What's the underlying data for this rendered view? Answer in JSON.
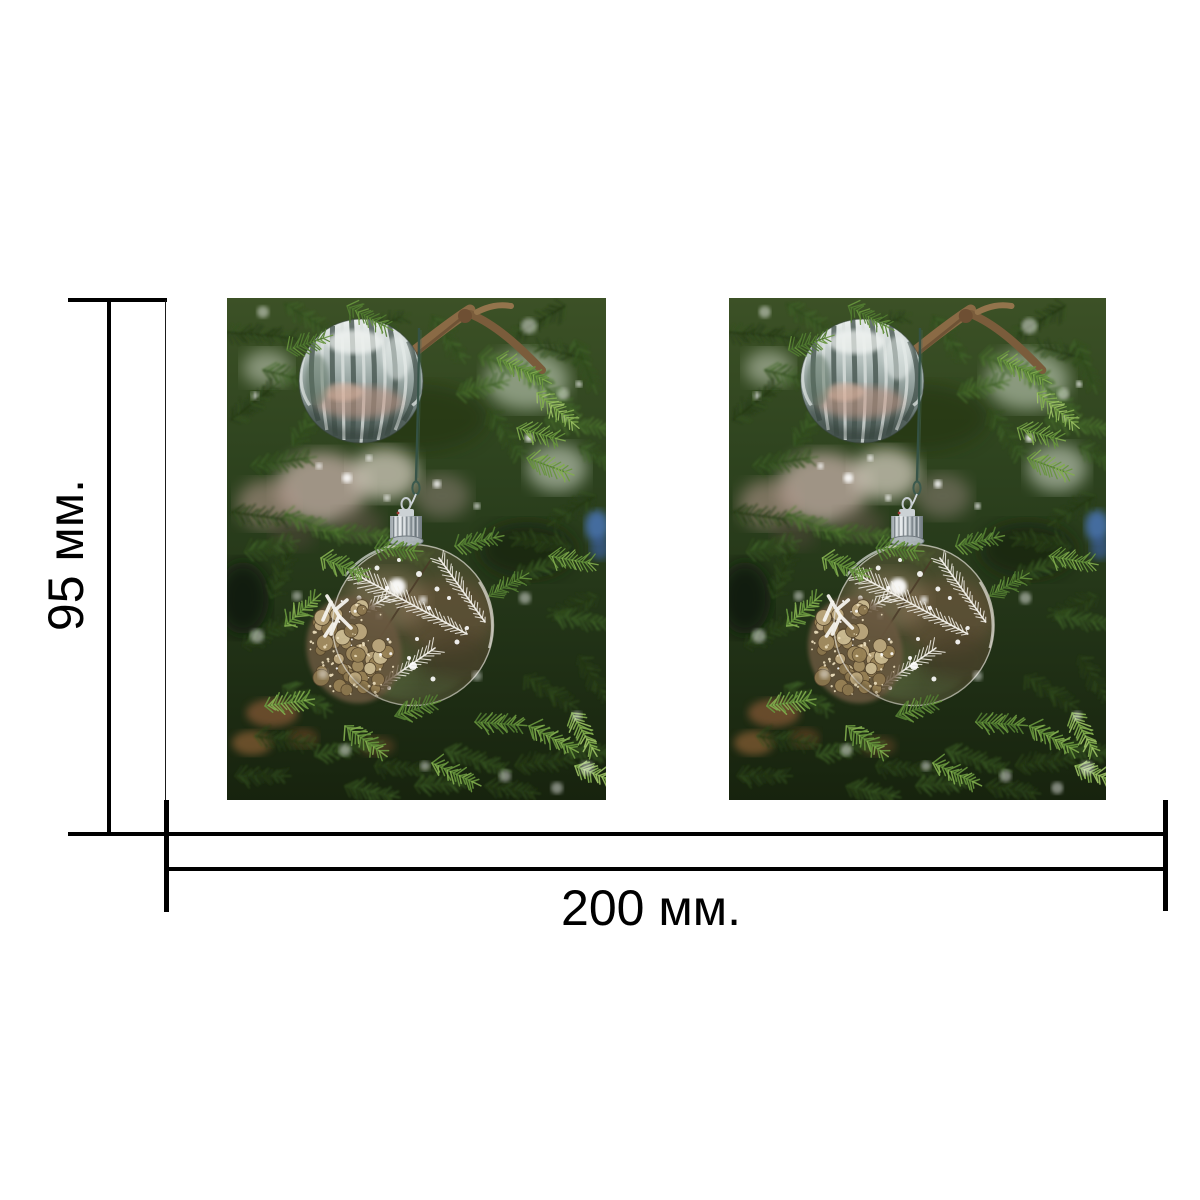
{
  "page": {
    "background": "#ffffff",
    "line_color": "#000000",
    "text_color": "#000000"
  },
  "drawing": {
    "height_dimension": {
      "label": "95 мм."
    },
    "width_dimension": {
      "label": "200 мм."
    }
  },
  "photos": {
    "count": 2,
    "content": "christmas-tree-baubles-photo"
  }
}
